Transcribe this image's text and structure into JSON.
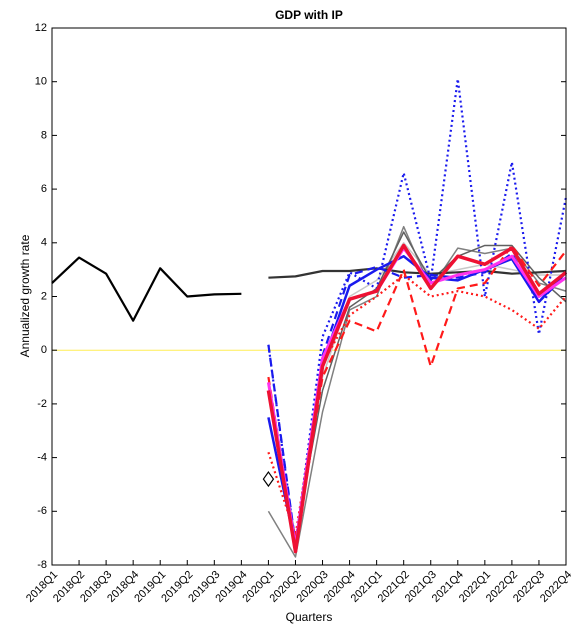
{
  "chart_data": {
    "type": "line",
    "title": "GDP with IP",
    "x_label": "Quarters",
    "y_label": "Annualized growth rate",
    "categories": [
      "2018Q1",
      "2018Q2",
      "2018Q3",
      "2018Q4",
      "2019Q1",
      "2019Q2",
      "2019Q3",
      "2019Q4",
      "2020Q1",
      "2020Q2",
      "2020Q3",
      "2020Q4",
      "2021Q1",
      "2021Q2",
      "2021Q3",
      "2021Q4",
      "2022Q1",
      "2022Q2",
      "2022Q3",
      "2022Q4"
    ],
    "ylim": [
      -8,
      12
    ],
    "yticks": [
      -8,
      -6,
      -4,
      -2,
      0,
      2,
      4,
      6,
      8,
      10,
      12
    ],
    "hline": 0,
    "hline_color": "#ffee55",
    "series": [
      {
        "color": "#000000",
        "dash": "solid",
        "width": 2.2,
        "values": [
          2.5,
          3.45,
          2.85,
          1.1,
          3.05,
          2.0,
          2.08,
          2.1,
          null,
          null,
          null,
          null,
          null,
          null,
          null,
          null,
          null,
          null,
          null,
          null
        ]
      },
      {
        "color": "#c8c8c8",
        "dash": "solid",
        "width": 1.5,
        "values": [
          null,
          null,
          null,
          null,
          null,
          null,
          null,
          null,
          -1.0,
          -7.0,
          -1.0,
          2.0,
          2.6,
          4.0,
          2.8,
          3.0,
          3.2,
          3.0,
          2.8,
          2.8
        ]
      },
      {
        "color": "#808080",
        "dash": "solid",
        "width": 1.5,
        "values": [
          null,
          null,
          null,
          null,
          null,
          null,
          null,
          null,
          -6.0,
          -7.7,
          -2.3,
          1.5,
          2.0,
          4.6,
          2.3,
          3.8,
          3.6,
          3.8,
          2.5,
          2.2
        ]
      },
      {
        "color": "#606060",
        "dash": "solid",
        "width": 1.5,
        "values": [
          null,
          null,
          null,
          null,
          null,
          null,
          null,
          null,
          -1.6,
          -7.0,
          -1.5,
          1.6,
          2.3,
          4.4,
          2.6,
          3.5,
          3.9,
          3.9,
          2.7,
          1.8
        ]
      },
      {
        "color": "#333333",
        "dash": "solid",
        "width": 2.2,
        "values": [
          null,
          null,
          null,
          null,
          null,
          null,
          null,
          null,
          2.7,
          2.75,
          2.95,
          2.95,
          3.05,
          2.9,
          2.85,
          2.9,
          2.95,
          2.85,
          2.9,
          2.95
        ]
      },
      {
        "color": "#1a1aee",
        "dash": "dotted",
        "width": 2.2,
        "values": [
          null,
          null,
          null,
          null,
          null,
          null,
          null,
          null,
          0.2,
          -7.3,
          0.5,
          2.9,
          2.3,
          6.6,
          2.6,
          10.1,
          2.0,
          7.0,
          0.6,
          5.7
        ]
      },
      {
        "color": "#1a1aee",
        "dash": "dashed",
        "width": 2.2,
        "values": [
          null,
          null,
          null,
          null,
          null,
          null,
          null,
          null,
          0.2,
          -7.2,
          -0.2,
          2.8,
          3.1,
          2.7,
          2.8,
          2.7,
          2.9,
          3.6,
          1.8,
          2.8
        ]
      },
      {
        "color": "#1a1aee",
        "dash": "solid",
        "width": 2.5,
        "values": [
          null,
          null,
          null,
          null,
          null,
          null,
          null,
          null,
          -2.5,
          -7.3,
          -0.5,
          2.4,
          3.0,
          3.5,
          2.7,
          2.6,
          3.0,
          3.4,
          1.8,
          2.9
        ]
      },
      {
        "color": "#ff1a1a",
        "dash": "dashed",
        "width": 2.2,
        "values": [
          null,
          null,
          null,
          null,
          null,
          null,
          null,
          null,
          -1.0,
          -7.4,
          -1.0,
          1.1,
          0.7,
          3.0,
          -0.6,
          2.3,
          2.5,
          3.9,
          2.4,
          3.7
        ]
      },
      {
        "color": "#ff1a1a",
        "dash": "dotted",
        "width": 2.2,
        "values": [
          null,
          null,
          null,
          null,
          null,
          null,
          null,
          null,
          -3.8,
          -6.9,
          -0.5,
          1.3,
          2.0,
          2.8,
          2.0,
          2.2,
          2.0,
          1.5,
          0.8,
          2.0
        ]
      },
      {
        "color": "#ff33ee",
        "dash": "solid",
        "width": 3,
        "values": [
          null,
          null,
          null,
          null,
          null,
          null,
          null,
          null,
          -1.2,
          -7.3,
          -0.3,
          1.9,
          2.2,
          3.8,
          2.5,
          2.8,
          3.0,
          3.5,
          2.0,
          2.7
        ]
      },
      {
        "color": "#ee1133",
        "dash": "solid",
        "width": 3.5,
        "values": [
          null,
          null,
          null,
          null,
          null,
          null,
          null,
          null,
          -1.5,
          -7.5,
          -0.6,
          1.9,
          2.2,
          3.9,
          2.3,
          3.5,
          3.2,
          3.8,
          2.1,
          2.9
        ]
      }
    ],
    "markers": {
      "color": "#000000",
      "shape": "diamond",
      "values": [
        null,
        null,
        null,
        null,
        null,
        null,
        null,
        null,
        -4.8,
        null,
        null,
        null,
        null,
        null,
        null,
        null,
        null,
        null,
        null,
        null
      ]
    }
  }
}
